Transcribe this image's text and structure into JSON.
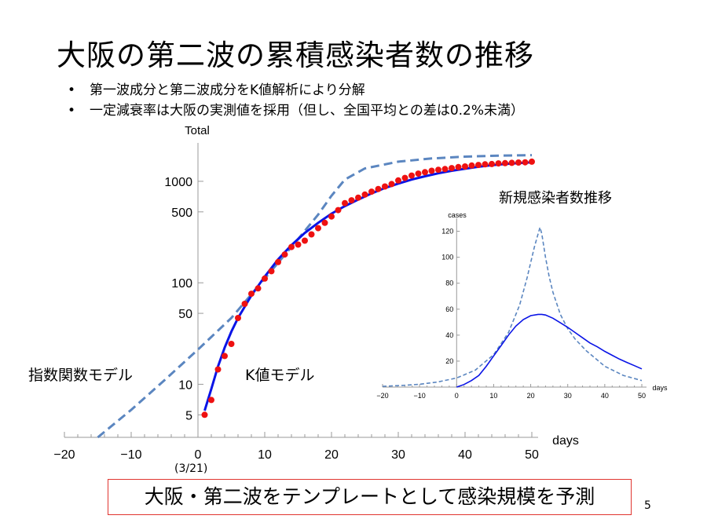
{
  "slide": {
    "title": "大阪の第二波の累積感染者数の推移",
    "bullets": [
      "第一波成分と第二波成分をK値解析により分解",
      "一定減衰率は大阪の実測値を採用（但し、全国平均との差は0.2%未満）"
    ],
    "label_exponential": "指数関数モデル",
    "label_k_model": "K値モデル",
    "start_date": "(3/21)",
    "callout": "大阪・第二波をテンプレートとして感染規模を予測",
    "page_number": "5"
  },
  "colors": {
    "dashed_curve": "#5b86c0",
    "solid_curve": "#0a14e6",
    "points": "#ee1111",
    "callout_border": "#e0352f"
  },
  "chart_data": [
    {
      "type": "scatter",
      "y_scale": "log",
      "ylabel": "Total",
      "xlabel": "days",
      "xlim": [
        -20,
        50
      ],
      "ylim": [
        3,
        2000
      ],
      "x_ticks": [
        -20,
        -10,
        0,
        10,
        20,
        30,
        40,
        50
      ],
      "y_ticks": [
        5,
        10,
        50,
        100,
        500,
        1000
      ],
      "series": [
        {
          "kind": "points",
          "x": [
            1,
            2,
            3,
            4,
            5,
            6,
            7,
            8,
            9,
            10,
            11,
            12,
            13,
            14,
            15,
            16,
            17,
            18,
            19,
            20,
            21,
            22,
            23,
            24,
            25,
            26,
            27,
            28,
            29,
            30,
            31,
            32,
            33,
            34,
            35,
            36,
            37,
            38,
            39,
            40,
            41,
            42,
            43,
            44,
            45,
            46,
            47,
            48,
            49,
            50
          ],
          "y": [
            5,
            7,
            14,
            19,
            25,
            45,
            62,
            78,
            88,
            110,
            130,
            160,
            190,
            225,
            238,
            260,
            300,
            345,
            390,
            450,
            520,
            610,
            650,
            690,
            740,
            790,
            840,
            890,
            940,
            1020,
            1080,
            1140,
            1190,
            1230,
            1270,
            1300,
            1320,
            1350,
            1380,
            1400,
            1430,
            1450,
            1470,
            1480,
            1500,
            1510,
            1520,
            1530,
            1540,
            1560
          ]
        },
        {
          "kind": "solid-line",
          "x": [
            1,
            2,
            3,
            4,
            5,
            6,
            8,
            10,
            12,
            14,
            16,
            18,
            20,
            22,
            24,
            26,
            28,
            30,
            32,
            34,
            36,
            38,
            40,
            42,
            44,
            46,
            48,
            50
          ],
          "y": [
            5.5,
            9,
            15,
            23,
            33,
            45,
            75,
            115,
            170,
            235,
            310,
            390,
            480,
            570,
            660,
            760,
            860,
            950,
            1040,
            1120,
            1200,
            1270,
            1330,
            1390,
            1440,
            1480,
            1510,
            1540
          ]
        },
        {
          "kind": "dashed-line",
          "x": [
            -15,
            -10,
            -5,
            0,
            5,
            10,
            15,
            18,
            20,
            22,
            25,
            30,
            35,
            40,
            45,
            50
          ],
          "y": [
            3,
            5.6,
            11,
            22,
            45,
            110,
            270,
            470,
            720,
            1040,
            1340,
            1560,
            1680,
            1750,
            1790,
            1810
          ]
        }
      ]
    },
    {
      "type": "line",
      "title": "新規感染者数推移",
      "ylabel": "cases",
      "xlabel": "days",
      "xlim": [
        -20,
        50
      ],
      "ylim": [
        0,
        130
      ],
      "x_ticks": [
        -20,
        -10,
        0,
        10,
        20,
        30,
        40,
        50
      ],
      "y_ticks": [
        20,
        40,
        60,
        80,
        100,
        120
      ],
      "series": [
        {
          "kind": "solid-line",
          "x": [
            0,
            2,
            4,
            6,
            8,
            10,
            12,
            14,
            16,
            18,
            20,
            22,
            23,
            24,
            26,
            28,
            30,
            32,
            34,
            36,
            38,
            40,
            42,
            44,
            46,
            48,
            50
          ],
          "y": [
            0,
            2,
            5,
            9,
            16,
            24,
            32,
            40,
            47,
            52,
            55,
            56,
            56,
            55.5,
            53,
            49.5,
            46,
            42,
            38,
            34,
            31,
            27.5,
            24.5,
            21.5,
            19,
            16.5,
            14
          ]
        },
        {
          "kind": "dashed-line",
          "x": [
            -20,
            -15,
            -10,
            -5,
            0,
            5,
            10,
            14,
            17,
            19,
            20,
            21,
            22,
            22.5,
            23,
            24,
            25,
            26,
            28,
            30,
            32,
            35,
            40,
            45,
            50
          ],
          "y": [
            0.6,
            1.2,
            2.2,
            4,
            7,
            13,
            25,
            42,
            63,
            84,
            96,
            108,
            118,
            123,
            118,
            100,
            85,
            73,
            56,
            45,
            37,
            28,
            16,
            9,
            5
          ]
        }
      ]
    }
  ]
}
